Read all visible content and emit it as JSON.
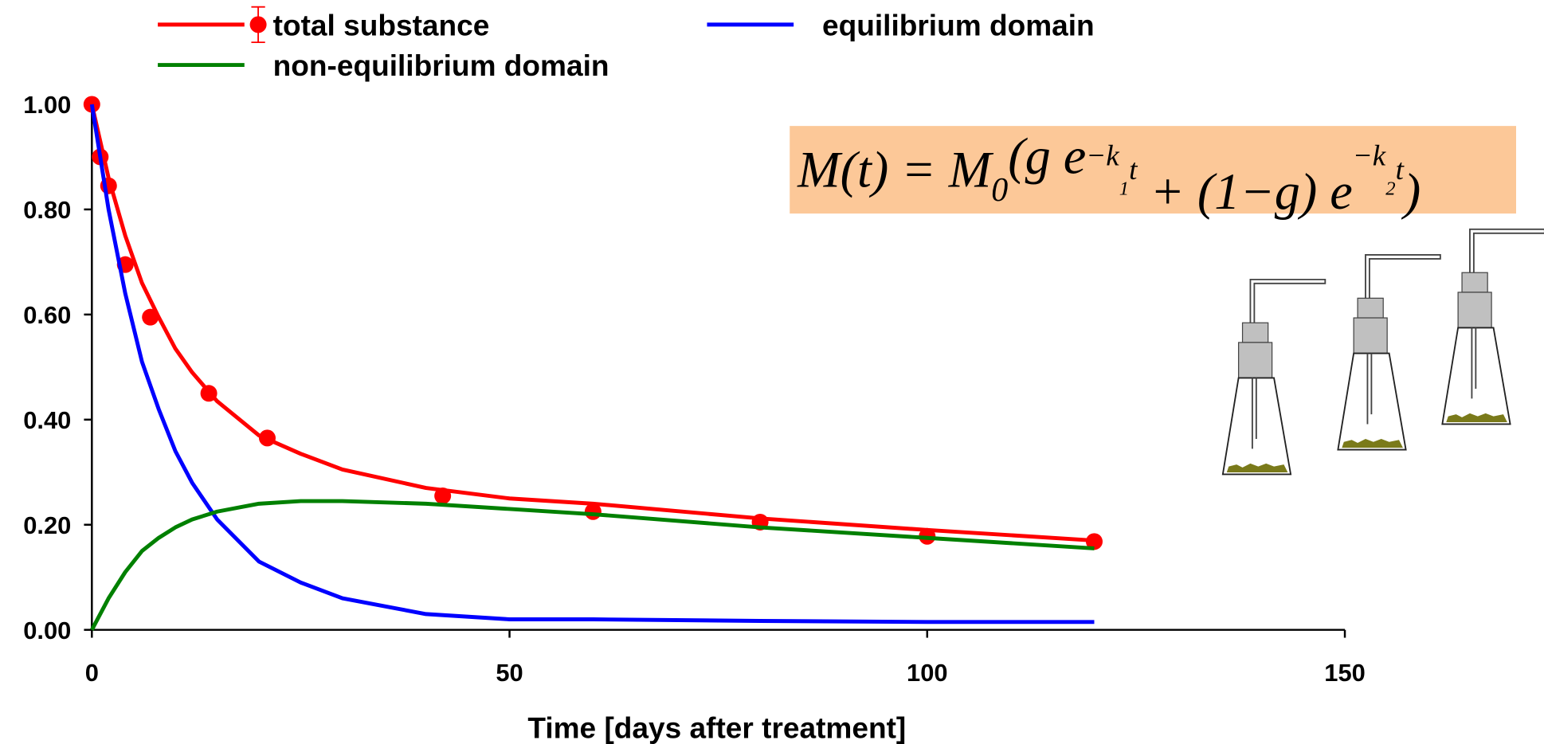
{
  "chart_data": {
    "type": "line",
    "xlabel": "Time [days after treatment]",
    "xlim": [
      0,
      150
    ],
    "xticks": [
      0,
      50,
      100,
      150
    ],
    "ylim": [
      0,
      1
    ],
    "yticks": [
      {
        "value": 0,
        "label": "0.00"
      },
      {
        "value": 0.2,
        "label": "0.20"
      },
      {
        "value": 0.4,
        "label": "0.40"
      },
      {
        "value": 0.6,
        "label": "0.60"
      },
      {
        "value": 0.8,
        "label": "0.80"
      },
      {
        "value": 1,
        "label": "1.00"
      }
    ],
    "x": [
      0,
      2,
      4,
      6,
      8,
      10,
      12,
      15,
      20,
      25,
      30,
      40,
      50,
      60,
      80,
      100,
      120
    ],
    "series": [
      {
        "name": "total substance",
        "color": "#ff0000",
        "values": [
          1.0,
          0.86,
          0.75,
          0.66,
          0.595,
          0.535,
          0.49,
          0.435,
          0.37,
          0.335,
          0.305,
          0.27,
          0.25,
          0.24,
          0.212,
          0.19,
          0.17
        ],
        "points": {
          "x": [
            0,
            1,
            2,
            4,
            7,
            14,
            21,
            42,
            60,
            80,
            100,
            120
          ],
          "values": [
            1.0,
            0.9,
            0.845,
            0.695,
            0.595,
            0.45,
            0.365,
            0.255,
            0.225,
            0.205,
            0.178,
            0.168
          ]
        }
      },
      {
        "name": "equilibrium domain",
        "color": "#0000ff",
        "values": [
          1.0,
          0.8,
          0.64,
          0.51,
          0.42,
          0.34,
          0.28,
          0.21,
          0.13,
          0.09,
          0.06,
          0.03,
          0.02,
          0.02,
          0.017,
          0.015,
          0.015
        ]
      },
      {
        "name": "non-equilibrium domain",
        "color": "#008000",
        "values": [
          0,
          0.06,
          0.11,
          0.15,
          0.175,
          0.195,
          0.21,
          0.225,
          0.24,
          0.245,
          0.245,
          0.24,
          0.23,
          0.22,
          0.195,
          0.175,
          0.155
        ]
      }
    ],
    "formula_parts": [
      "M(t) = M",
      "0",
      "(g e",
      "−k",
      "1",
      "t",
      " + (1−g) e",
      "−k",
      "2",
      "t",
      ")"
    ]
  }
}
